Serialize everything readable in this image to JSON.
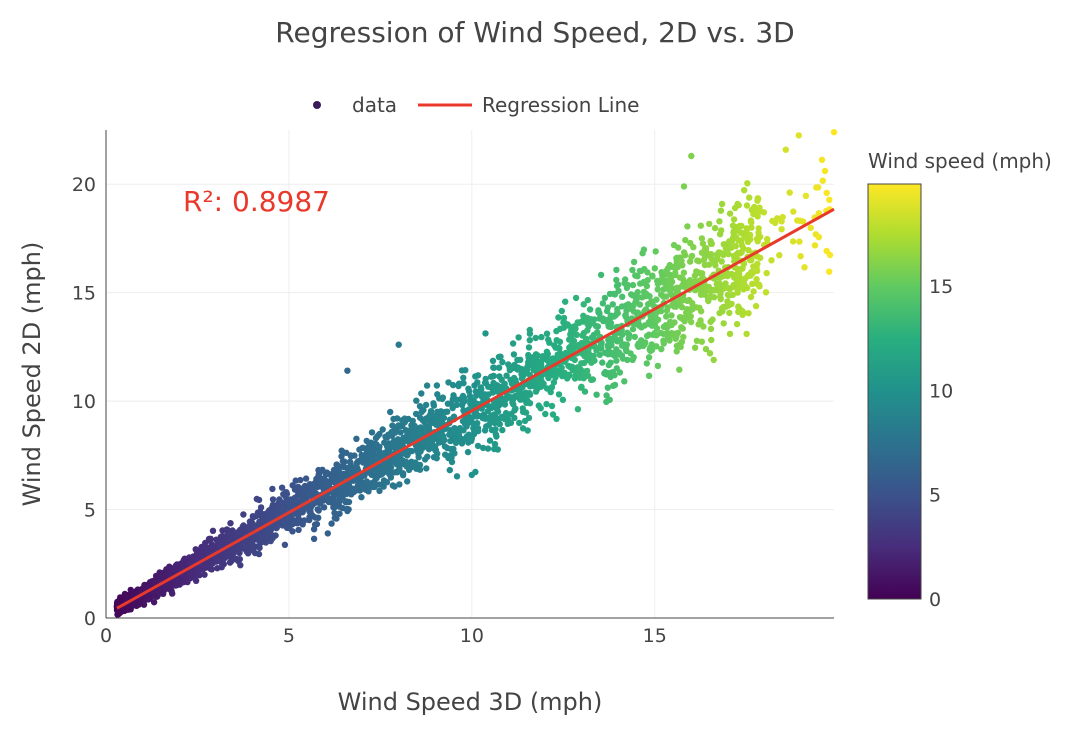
{
  "chart_data": {
    "type": "scatter",
    "title": "Regression of Wind Speed, 2D vs. 3D",
    "xlabel": "Wind Speed 3D (mph)",
    "ylabel": "Wind Speed 2D (mph)",
    "xlim": [
      0,
      19.9
    ],
    "ylim": [
      0,
      22.5
    ],
    "x_ticks": [
      0,
      5,
      10,
      15
    ],
    "y_ticks": [
      0,
      5,
      10,
      15,
      20
    ],
    "grid": true,
    "legend": {
      "placement": "top-center",
      "entries": [
        "data",
        "Regression Line"
      ]
    },
    "annotation": "R²: 0.8987",
    "regression_line": {
      "name": "Regression Line",
      "color": "#e8392b",
      "x": [
        0.3,
        19.9
      ],
      "y": [
        0.45,
        18.85
      ]
    },
    "scatter": {
      "name": "data",
      "n_points": 3200,
      "x_min": 0.3,
      "x_max": 19.9,
      "slope": 0.94,
      "note_values": "point cloud generated in script; representative extreme points below",
      "highlight_points": [
        {
          "x": 19.9,
          "y": 22.4
        },
        {
          "x": 16.0,
          "y": 21.3
        },
        {
          "x": 19.7,
          "y": 19.6
        },
        {
          "x": 15.8,
          "y": 19.9
        },
        {
          "x": 17.3,
          "y": 14.3
        },
        {
          "x": 16.4,
          "y": 12.4
        },
        {
          "x": 10.0,
          "y": 6.6
        },
        {
          "x": 6.6,
          "y": 11.4
        },
        {
          "x": 8.0,
          "y": 12.6
        }
      ]
    },
    "colorbar": {
      "title": "Wind speed (mph)",
      "min": 0,
      "max": 19.9,
      "ticks": [
        0,
        5,
        10,
        15
      ],
      "colorscale": "viridis"
    }
  }
}
